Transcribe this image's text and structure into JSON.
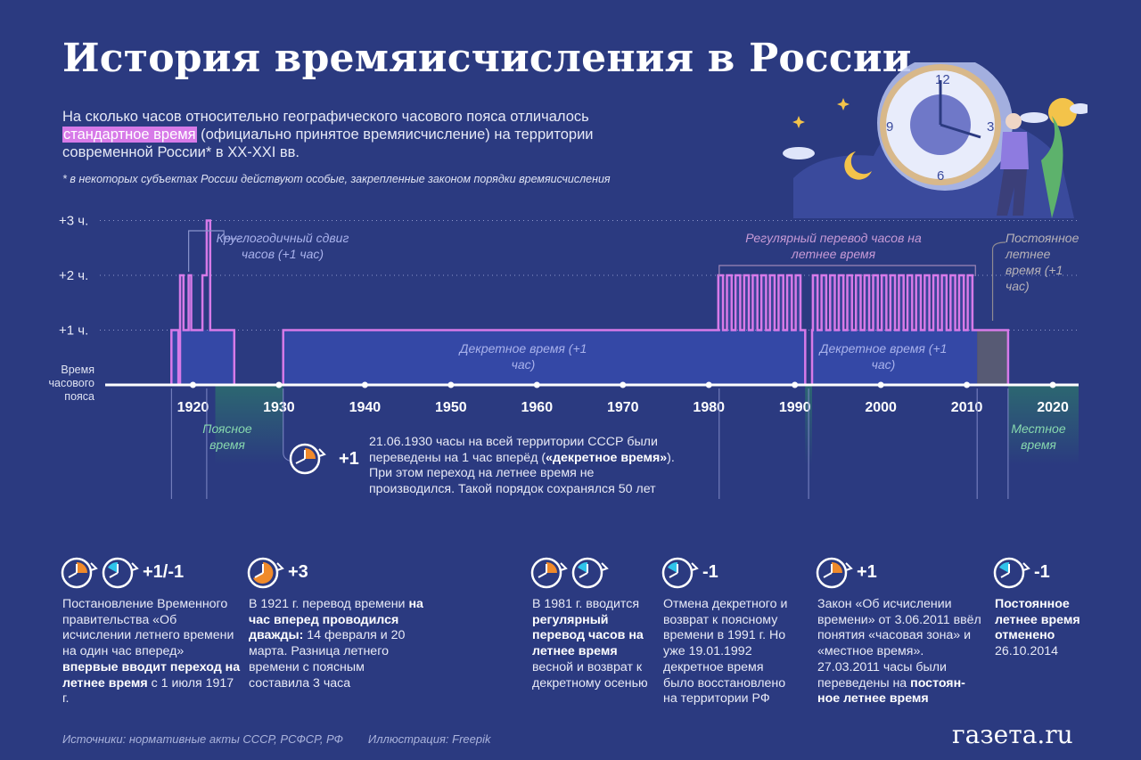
{
  "header": {
    "title": "История времяисчисления в России",
    "subtitle_pre": "На сколько часов относительно географического часового пояса отличалось ",
    "subtitle_highlight": "стандартное время",
    "subtitle_post": " (официально принятое времяисчисление) на территории современной России* в XX-XXI вв.",
    "footnote": "* в некоторых субъектах России действуют особые, закрепленные законом порядки времяисчисления"
  },
  "chart_data": {
    "type": "line",
    "xlim": [
      1910,
      2023
    ],
    "ylim": [
      0,
      3
    ],
    "y_ticks": [
      "+3 ч.",
      "+2 ч.",
      "+1 ч."
    ],
    "y_baseline_label": "Время часового пояса",
    "x_ticks": [
      "1920",
      "1930",
      "1940",
      "1950",
      "1960",
      "1970",
      "1980",
      "1990",
      "2000",
      "2010",
      "2020"
    ],
    "series": [
      {
        "values": [
          [
            1910,
            0
          ],
          [
            1917.5,
            0
          ],
          [
            1917.5,
            1
          ],
          [
            1918.3,
            1
          ],
          [
            1918.3,
            0
          ],
          [
            1918.5,
            0
          ],
          [
            1918.5,
            2
          ],
          [
            1918.9,
            2
          ],
          [
            1918.9,
            1
          ],
          [
            1919.5,
            1
          ],
          [
            1919.5,
            2
          ],
          [
            1919.8,
            2
          ],
          [
            1919.8,
            1
          ],
          [
            1921.1,
            1
          ],
          [
            1921.1,
            2
          ],
          [
            1921.6,
            2
          ],
          [
            1921.6,
            3
          ],
          [
            1922.0,
            3
          ],
          [
            1922.0,
            1
          ],
          [
            1924.8,
            1
          ],
          [
            1924.8,
            0
          ],
          [
            1930.5,
            0
          ],
          [
            1930.5,
            1
          ],
          [
            1981.3,
            1
          ],
          "summer-cycles-1981-1991",
          [
            1991.2,
            1
          ],
          [
            1991.2,
            0
          ],
          [
            1992.0,
            0
          ],
          [
            1992.0,
            1
          ],
          "summer-cycles-1992-2011",
          [
            2011.2,
            1
          ],
          [
            2014.8,
            1
          ],
          [
            2014.8,
            0
          ],
          [
            2023,
            0
          ]
        ]
      }
    ],
    "summer_time_years": [
      1981,
      1990,
      1992,
      2010
    ],
    "zones": [
      {
        "label": "Поясное время",
        "from": 1922.6,
        "to": 1930.5
      },
      {
        "label": "Поясное время",
        "from": 1991.2,
        "to": 1992.0
      },
      {
        "label": "Местное время",
        "from": 2014.8,
        "to": 2023
      }
    ],
    "annotations": {
      "round_year": "Круглогодичный сдвиг часов (+1 час)",
      "summer_regular": "Регулярный перевод часов на летнее время",
      "permanent_summer": "Постоянное летнее время (+1 час)",
      "decree_1": "Декретное время (+1 час)",
      "decree_2": "Декретное время (+1 час)",
      "zone_belt": "Поясное время",
      "zone_local": "Местное время"
    }
  },
  "event_1930": {
    "badge": "+1",
    "text_pre": "21.06.1930 часы на всей территории СССР были переведены на 1 час вперёд (",
    "text_bold": "«декретное время»",
    "text_post": "). При этом переход на летнее время не производился. Такой порядок сохранялся 50 лет"
  },
  "events": [
    {
      "badge": "+1/-1",
      "parts": [
        {
          "t": "Постановление Временного правительства «Об исчислении летнего времени на один час вперед» ",
          "b": false
        },
        {
          "t": "впервые вводит переход на летнее время",
          "b": true
        },
        {
          "t": " с 1 июля 1917 г.",
          "b": false
        }
      ]
    },
    {
      "badge": "+3",
      "parts": [
        {
          "t": "В 1921 г. перевод времени ",
          "b": false
        },
        {
          "t": "на час вперед проводился дважды:",
          "b": true
        },
        {
          "t": " 14 февраля и 20 марта. Разница летнего времени с поясным составила 3 часа",
          "b": false
        }
      ]
    },
    {
      "badge": "",
      "parts": [
        {
          "t": "В 1981 г. вводится ",
          "b": false
        },
        {
          "t": "регулярный перевод часов на летнее время",
          "b": true
        },
        {
          "t": " весной и возврат к декретному осенью",
          "b": false
        }
      ]
    },
    {
      "badge": "-1",
      "parts": [
        {
          "t": "Отмена декретного и возврат к поясному времени в 1991 г. Но уже 19.01.1992 декретное время было восстановлено на территории РФ",
          "b": false
        }
      ]
    },
    {
      "badge": "+1",
      "parts": [
        {
          "t": "Закон «Об исчислении времени» от 3.06.2011 ввёл понятия «часовая зона» и «местное время». 27.03.2011 часы были переведены на ",
          "b": false
        },
        {
          "t": "постоян-ное летнее время",
          "b": true
        }
      ]
    },
    {
      "badge": "-1",
      "parts": [
        {
          "t": "Постоянное летнее время отменено",
          "b": true
        },
        {
          "t": " 26.10.2014",
          "b": false
        }
      ]
    }
  ],
  "footer": {
    "source": "Источники: нормативные акты СССР, РСФСР, РФ",
    "illustration": "Иллюстрация: Freepik",
    "logo": "газета.ru"
  },
  "illustration": {
    "clock_numbers": [
      "12",
      "3",
      "6",
      "9"
    ]
  },
  "colors": {
    "background": "#2b3a80",
    "line": "#d77ae8",
    "decree_fill": "#3448a6",
    "summer_fill": "#3b4598",
    "permanent_fill": "#575a74",
    "zone_fill": "#2c6a70",
    "orange": "#f08a2a",
    "cyan": "#2fc3ea"
  }
}
